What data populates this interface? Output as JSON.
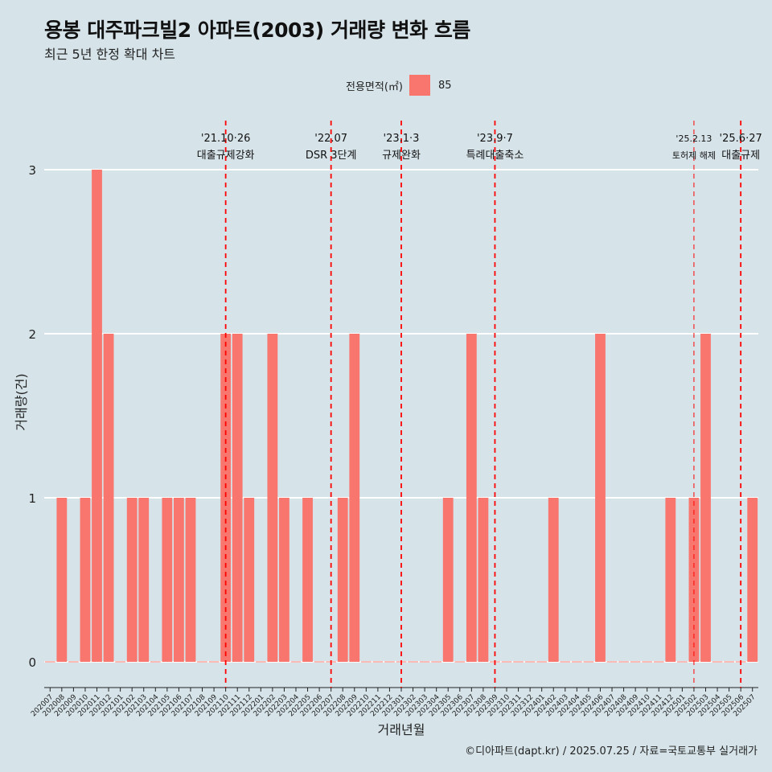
{
  "title": "용봉 대주파크빌2 아파트(2003) 거래량 변화 흐름",
  "subtitle": "최근 5년 한정 확대 차트",
  "legend": {
    "title": "전용면적(㎡)",
    "item": "85"
  },
  "caption": "©디아파트(dapt.kr) / 2025.07.25 / 자료=국토교통부 실거래가",
  "colors": {
    "bar": "#f8766d",
    "background": "#d6e4ea",
    "grid": "#ffffff",
    "event_line": "#ff0000"
  },
  "chart_data": {
    "type": "bar",
    "xlabel": "거래년월",
    "ylabel": "거래량(건)",
    "ylim": [
      0,
      3
    ],
    "yticks": [
      0,
      1,
      2,
      3
    ],
    "grid": "horizontal",
    "legend_position": "top",
    "categories": [
      "202007",
      "202008",
      "202009",
      "202010",
      "202011",
      "202012",
      "202101",
      "202102",
      "202103",
      "202104",
      "202105",
      "202106",
      "202107",
      "202108",
      "202109",
      "202110",
      "202111",
      "202112",
      "202201",
      "202202",
      "202203",
      "202204",
      "202205",
      "202206",
      "202207",
      "202208",
      "202209",
      "202210",
      "202211",
      "202212",
      "202301",
      "202302",
      "202303",
      "202304",
      "202305",
      "202306",
      "202307",
      "202308",
      "202309",
      "202310",
      "202311",
      "202312",
      "202401",
      "202402",
      "202403",
      "202404",
      "202405",
      "202406",
      "202407",
      "202408",
      "202409",
      "202410",
      "202411",
      "202412",
      "202501",
      "202502",
      "202503",
      "202504",
      "202505",
      "202506",
      "202507"
    ],
    "series": [
      {
        "name": "85",
        "values": [
          0,
          1,
          0,
          1,
          3,
          2,
          0,
          1,
          1,
          0,
          1,
          1,
          1,
          0,
          0,
          2,
          2,
          1,
          0,
          2,
          1,
          0,
          1,
          0,
          0,
          1,
          2,
          0,
          0,
          0,
          0,
          0,
          0,
          0,
          1,
          0,
          2,
          1,
          0,
          0,
          0,
          0,
          0,
          1,
          0,
          0,
          0,
          2,
          0,
          0,
          0,
          0,
          0,
          1,
          0,
          1,
          2,
          0,
          0,
          0,
          1
        ]
      }
    ],
    "events": [
      {
        "date": "202110",
        "label_top": "'21.10·26",
        "label_bottom": "대출규제강화",
        "style": "bold"
      },
      {
        "date": "202207",
        "label_top": "'22.07",
        "label_bottom": "DSR 3단계",
        "style": "bold"
      },
      {
        "date": "202301",
        "label_top": "'23.1·3",
        "label_bottom": "규제완화",
        "style": "bold"
      },
      {
        "date": "202309",
        "label_top": "'23.9·7",
        "label_bottom": "특례대출축소",
        "style": "bold"
      },
      {
        "date": "202502",
        "label_top": "'25.2.13",
        "label_bottom": "토허제 해제",
        "style": "thin"
      },
      {
        "date": "202506",
        "label_top": "'25.6·27",
        "label_bottom": "대출규제",
        "style": "bold"
      }
    ]
  }
}
